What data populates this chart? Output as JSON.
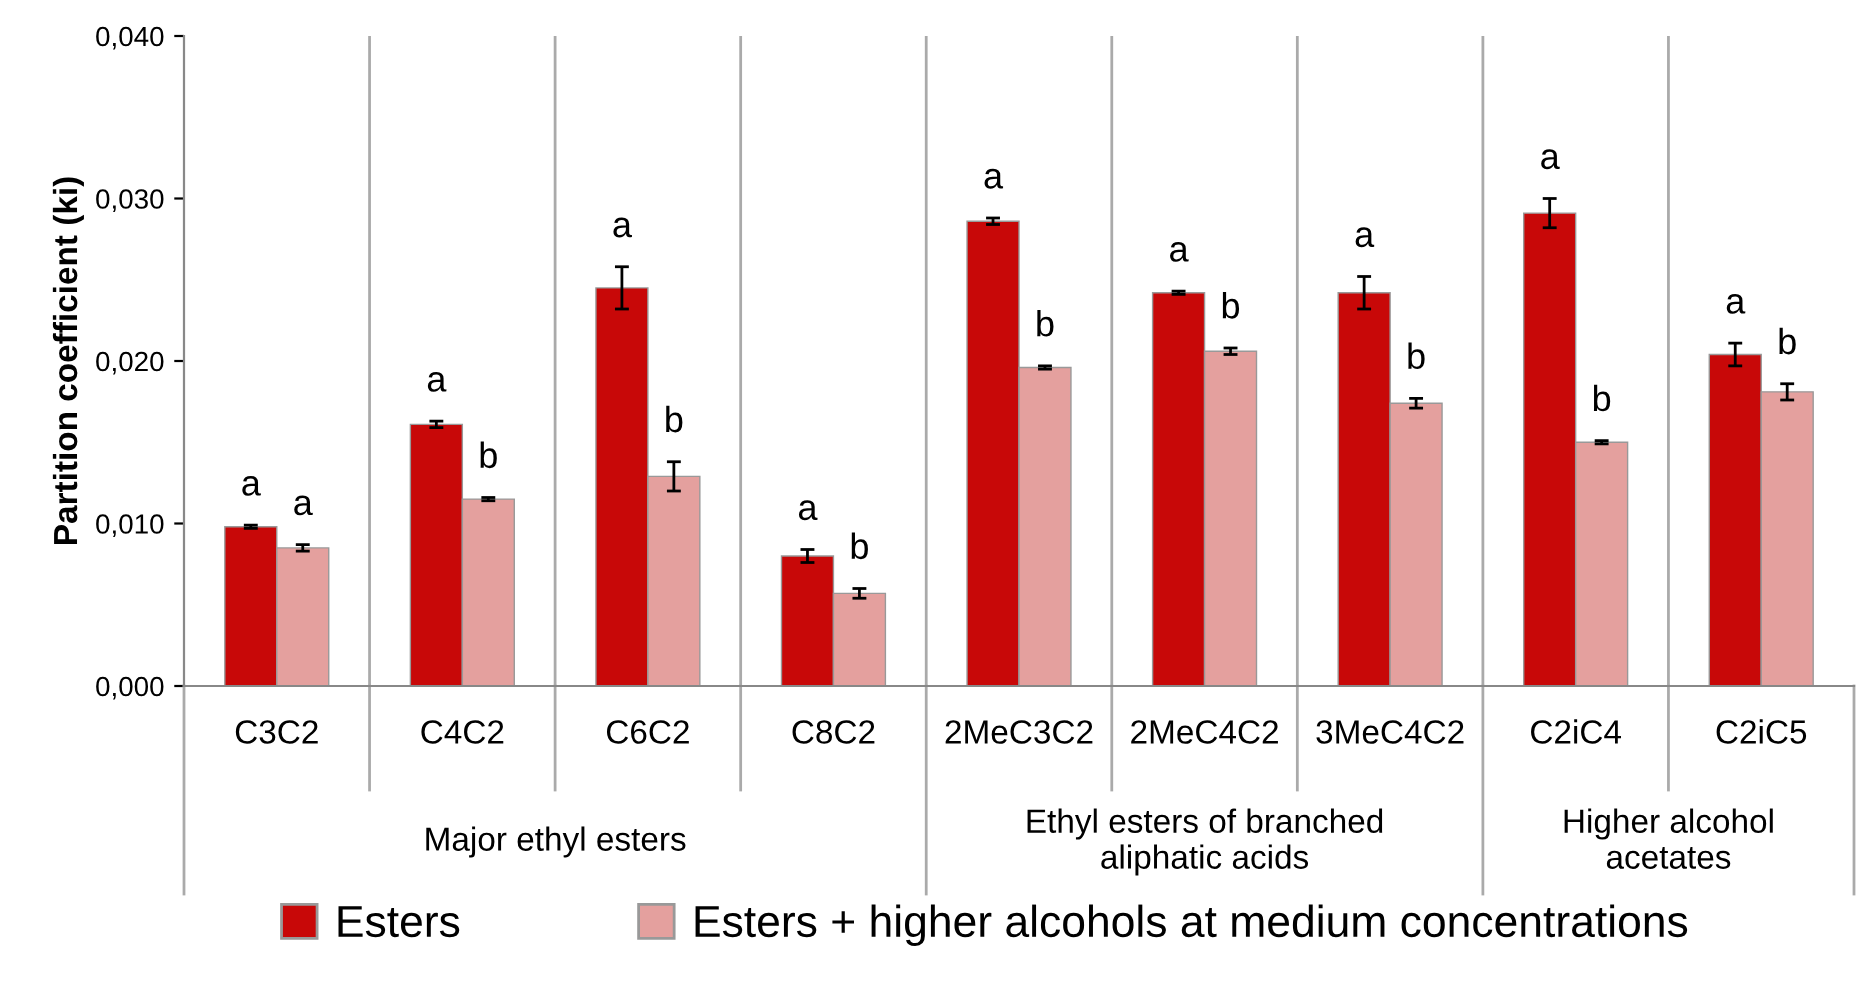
{
  "chart_data": {
    "type": "bar",
    "ylabel": "Partition coefficient (ki)",
    "categories": [
      "C3C2",
      "C4C2",
      "C6C2",
      "C8C2",
      "2MeC3C2",
      "2MeC4C2",
      "3MeC4C2",
      "C2iC4",
      "C2iC5"
    ],
    "series": [
      {
        "name": "Esters",
        "color": "#c80808",
        "values": [
          0.0098,
          0.0161,
          0.0245,
          0.008,
          0.0286,
          0.0242,
          0.0242,
          0.0291,
          0.0204
        ],
        "errors": [
          0.0001,
          0.0002,
          0.0013,
          0.0004,
          0.0002,
          0.0001,
          0.001,
          0.0009,
          0.0007
        ],
        "value_labels": [
          "a",
          "a",
          "a",
          "a",
          "a",
          "a",
          "a",
          "a",
          "a"
        ]
      },
      {
        "name": "Esters + higher alcohols at medium concentrations",
        "color": "#e4a09e",
        "values": [
          0.0085,
          0.0115,
          0.0129,
          0.0057,
          0.0196,
          0.0206,
          0.0174,
          0.015,
          0.0181
        ],
        "errors": [
          0.0002,
          0.0001,
          0.0009,
          0.0003,
          0.0001,
          0.0002,
          0.0003,
          0.0001,
          0.0005
        ],
        "value_labels": [
          "a",
          "b",
          "b",
          "b",
          "b",
          "b",
          "b",
          "b",
          "b"
        ]
      }
    ],
    "ylim": [
      0,
      0.04
    ],
    "yticks": [
      {
        "value": 0,
        "label": "0,000"
      },
      {
        "value": 0.01,
        "label": "0,010"
      },
      {
        "value": 0.02,
        "label": "0,020"
      },
      {
        "value": 0.03,
        "label": "0,030"
      },
      {
        "value": 0.04,
        "label": "0,040"
      }
    ],
    "annotations": [
      "Major ethyl esters",
      "Ethyl esters of branched\naliphatic acids",
      "Higher alcohol\nacetates"
    ],
    "grid": "x",
    "legend": "bottom"
  }
}
